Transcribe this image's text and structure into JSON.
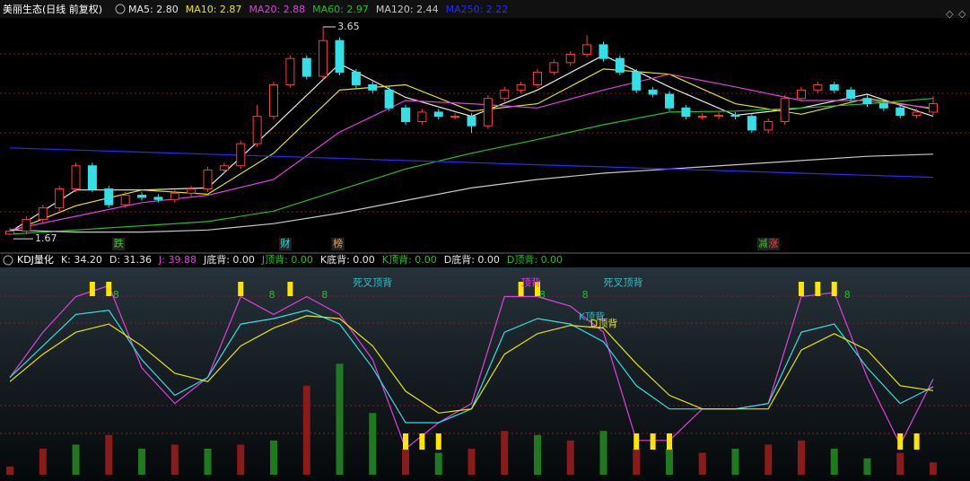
{
  "chart_data": [
    {
      "type": "candlestick",
      "title": "美丽生态(日线 前复权)",
      "up_color": "#ff3b3b",
      "down_color": "#33e0e8",
      "xlim": [
        -0.6,
        56.6
      ],
      "ylim": [
        1.62,
        3.735
      ],
      "open": [
        1.68,
        1.71,
        1.82,
        1.93,
        2.11,
        2.33,
        2.11,
        1.96,
        2.05,
        2.03,
        2.01,
        2.07,
        2.11,
        2.29,
        2.33,
        2.54,
        2.8,
        3.1,
        3.35,
        3.18,
        3.52,
        3.22,
        3.1,
        3.05,
        2.88,
        2.75,
        2.84,
        2.8,
        2.8,
        2.71,
        2.97,
        3.05,
        3.1,
        3.22,
        3.31,
        3.39,
        3.48,
        3.35,
        3.22,
        3.05,
        3.01,
        2.88,
        2.8,
        2.8,
        2.81,
        2.8,
        2.67,
        2.75,
        2.97,
        3.05,
        3.1,
        3.05,
        2.97,
        2.92,
        2.88,
        2.81,
        2.84
      ],
      "high": [
        1.74,
        1.85,
        1.96,
        2.14,
        2.36,
        2.36,
        2.14,
        2.08,
        2.08,
        2.06,
        2.1,
        2.14,
        2.32,
        2.36,
        2.57,
        2.91,
        3.13,
        3.38,
        3.38,
        3.65,
        3.55,
        3.25,
        3.13,
        3.08,
        2.91,
        2.87,
        2.87,
        2.83,
        2.83,
        3.0,
        3.08,
        3.13,
        3.25,
        3.34,
        3.42,
        3.57,
        3.51,
        3.38,
        3.25,
        3.08,
        3.04,
        2.91,
        2.83,
        2.84,
        2.84,
        2.83,
        2.78,
        3.0,
        3.08,
        3.13,
        3.13,
        3.08,
        3.0,
        2.95,
        2.91,
        2.87,
        2.99
      ],
      "low": [
        1.67,
        1.68,
        1.79,
        1.9,
        2.08,
        2.08,
        1.93,
        1.93,
        2.0,
        1.98,
        1.98,
        2.04,
        2.08,
        2.26,
        2.3,
        2.51,
        2.77,
        3.07,
        3.15,
        3.15,
        3.19,
        3.07,
        3.02,
        2.85,
        2.72,
        2.72,
        2.77,
        2.77,
        2.64,
        2.68,
        2.94,
        3.02,
        3.07,
        3.19,
        3.28,
        3.36,
        3.32,
        3.19,
        3.02,
        2.98,
        2.85,
        2.77,
        2.77,
        2.77,
        2.77,
        2.64,
        2.64,
        2.72,
        2.94,
        3.02,
        3.02,
        2.94,
        2.89,
        2.85,
        2.78,
        2.78,
        2.81
      ],
      "close": [
        1.71,
        1.82,
        1.93,
        2.11,
        2.33,
        2.11,
        1.96,
        2.05,
        2.03,
        2.01,
        2.07,
        2.11,
        2.29,
        2.33,
        2.54,
        2.8,
        3.1,
        3.35,
        3.18,
        3.52,
        3.22,
        3.1,
        3.05,
        2.88,
        2.75,
        2.84,
        2.8,
        2.8,
        2.71,
        2.97,
        3.05,
        3.1,
        3.22,
        3.31,
        3.39,
        3.48,
        3.35,
        3.22,
        3.05,
        3.01,
        2.88,
        2.8,
        2.8,
        2.81,
        2.8,
        2.67,
        2.75,
        2.97,
        3.05,
        3.1,
        3.05,
        2.97,
        2.92,
        2.88,
        2.81,
        2.84,
        2.92
      ],
      "series": [
        {
          "name": "MA5: 2.80",
          "color": "#e8e8e8",
          "x": [
            0,
            4,
            8,
            12,
            16,
            20,
            24,
            28,
            32,
            36,
            40,
            44,
            48,
            52,
            56
          ],
          "values": [
            1.7,
            2.1,
            2.1,
            2.12,
            2.7,
            3.3,
            2.98,
            2.8,
            3.05,
            3.38,
            3.08,
            2.81,
            2.88,
            3.01,
            2.8
          ]
        },
        {
          "name": "MA10: 2.87",
          "color": "#e6e600",
          "x": [
            0,
            4,
            8,
            12,
            16,
            20,
            24,
            28,
            32,
            36,
            40,
            44,
            48,
            52,
            56
          ],
          "values": [
            1.7,
            1.95,
            2.1,
            2.06,
            2.45,
            3.05,
            3.1,
            2.85,
            2.92,
            3.25,
            3.2,
            2.92,
            2.82,
            2.97,
            2.87
          ]
        },
        {
          "name": "MA20: 2.88",
          "color": "#e040e0",
          "x": [
            0,
            4,
            8,
            12,
            16,
            20,
            24,
            28,
            32,
            36,
            40,
            44,
            48,
            52,
            56
          ],
          "values": [
            1.72,
            1.85,
            1.98,
            2.05,
            2.2,
            2.65,
            2.95,
            2.92,
            2.88,
            3.05,
            3.2,
            3.08,
            2.95,
            2.95,
            2.88
          ]
        },
        {
          "name": "MA60: 2.97",
          "color": "#22c022",
          "x": [
            0,
            4,
            8,
            12,
            16,
            20,
            24,
            28,
            32,
            36,
            40,
            44,
            48,
            52,
            56
          ],
          "values": [
            1.68,
            1.72,
            1.76,
            1.8,
            1.9,
            2.1,
            2.3,
            2.45,
            2.58,
            2.72,
            2.84,
            2.85,
            2.88,
            2.92,
            2.97
          ]
        },
        {
          "name": "MA120: 2.44",
          "color": "#c8c8c8",
          "x": [
            0,
            4,
            8,
            12,
            16,
            20,
            24,
            28,
            32,
            36,
            40,
            44,
            48,
            52,
            56
          ],
          "values": [
            1.72,
            1.7,
            1.7,
            1.72,
            1.78,
            1.88,
            2.0,
            2.12,
            2.2,
            2.26,
            2.3,
            2.34,
            2.38,
            2.42,
            2.44
          ]
        },
        {
          "name": "MA250: 2.22",
          "color": "#2a2aff",
          "x": [
            0,
            4,
            8,
            12,
            16,
            20,
            24,
            28,
            32,
            36,
            40,
            44,
            48,
            52,
            56
          ],
          "values": [
            2.5,
            2.48,
            2.46,
            2.44,
            2.42,
            2.4,
            2.38,
            2.36,
            2.34,
            2.32,
            2.3,
            2.28,
            2.26,
            2.24,
            2.22
          ]
        }
      ],
      "events": [
        {
          "text": "跌",
          "x": 6.6,
          "color": "#33cc33"
        },
        {
          "text": "财",
          "x": 16.7,
          "color": "#33e0e8"
        },
        {
          "text": "榜",
          "x": 19.9,
          "color": "#ff9a2a"
        },
        {
          "text": "减",
          "x": 45.7,
          "color": "#33cc33"
        },
        {
          "text": "涨",
          "x": 46.3,
          "color": "#ff3b3b"
        }
      ]
    },
    {
      "type": "line",
      "title": "KDJ量化",
      "items": [
        {
          "text": "K: 34.20",
          "color": "#e8e8e8"
        },
        {
          "text": "D: 31.36",
          "color": "#e8e8e8"
        },
        {
          "text": "J: 39.88",
          "color": "#e040e0"
        },
        {
          "text": "J底背: 0.00",
          "color": "#e8e8e8"
        },
        {
          "text": "J顶背: 0.00",
          "color": "#22c022"
        },
        {
          "text": "K底背: 0.00",
          "color": "#e8e8e8"
        },
        {
          "text": "K顶背: 0.00",
          "color": "#22c022"
        },
        {
          "text": "D底背: 0.00",
          "color": "#e8e8e8"
        },
        {
          "text": "D顶背: 0.00",
          "color": "#22c022"
        }
      ],
      "xlim": [
        -0.6,
        56.6
      ],
      "ylim": [
        -30,
        120
      ],
      "series": [
        {
          "name": "J",
          "color": "#e040e0",
          "x": [
            0,
            2,
            4,
            6,
            8,
            10,
            12,
            14,
            16,
            18,
            20,
            22,
            24,
            26,
            28,
            30,
            32,
            34,
            36,
            38,
            40,
            42,
            44,
            46,
            48,
            50,
            52,
            54,
            56
          ],
          "values": [
            41,
            74,
            100,
            108,
            48,
            22,
            41,
            100,
            87,
            100,
            87,
            54,
            -11,
            8,
            22,
            100,
            100,
            93,
            74,
            -5,
            -5,
            18,
            18,
            22,
            100,
            103,
            41,
            -8,
            39.88
          ]
        },
        {
          "name": "K",
          "color": "#33e0e8",
          "x": [
            0,
            2,
            4,
            6,
            8,
            10,
            12,
            14,
            16,
            18,
            20,
            22,
            24,
            26,
            28,
            30,
            32,
            34,
            36,
            38,
            40,
            42,
            44,
            46,
            48,
            50,
            52,
            54,
            56
          ],
          "values": [
            41,
            64,
            87,
            90,
            54,
            28,
            41,
            80,
            84,
            90,
            80,
            48,
            8,
            8,
            18,
            74,
            84,
            80,
            67,
            35,
            18,
            18,
            18,
            22,
            74,
            80,
            48,
            22,
            34.2
          ]
        },
        {
          "name": "D",
          "color": "#e6e600",
          "x": [
            0,
            2,
            4,
            6,
            8,
            10,
            12,
            14,
            16,
            18,
            20,
            22,
            24,
            26,
            28,
            30,
            32,
            34,
            36,
            38,
            40,
            42,
            44,
            46,
            48,
            50,
            52,
            54,
            56
          ],
          "values": [
            38,
            58,
            74,
            80,
            64,
            44,
            38,
            64,
            77,
            86,
            84,
            64,
            31,
            15,
            18,
            58,
            73,
            79,
            77,
            51,
            28,
            18,
            18,
            18,
            61,
            73,
            61,
            35,
            31.36
          ]
        }
      ],
      "bars": {
        "x": [
          0,
          2,
          4,
          6,
          8,
          10,
          12,
          14,
          16,
          18,
          20,
          22,
          24,
          26,
          28,
          30,
          32,
          34,
          36,
          38,
          40,
          42,
          44,
          46,
          48,
          50,
          52,
          54,
          56
        ],
        "values": [
          -24,
          -11,
          -8,
          -1,
          -11,
          -8,
          -11,
          -8,
          -5,
          35,
          51,
          15,
          -11,
          -14,
          -11,
          2,
          -1,
          -5,
          2,
          -11,
          -11,
          -14,
          -11,
          -8,
          -5,
          -11,
          -18,
          -14,
          -21
        ],
        "colors": [
          "#8b1a1a",
          "#8b1a1a",
          "#1f7a1f",
          "#8b1a1a",
          "#1f7a1f",
          "#8b1a1a",
          "#1f7a1f",
          "#8b1a1a",
          "#1f7a1f",
          "#8b1a1a",
          "#1f7a1f",
          "#1f7a1f",
          "#8b1a1a",
          "#1f7a1f",
          "#8b1a1a",
          "#8b1a1a",
          "#1f7a1f",
          "#8b1a1a",
          "#1f7a1f",
          "#8b1a1a",
          "#1f7a1f",
          "#8b1a1a",
          "#1f7a1f",
          "#8b1a1a",
          "#8b1a1a",
          "#1f7a1f",
          "#1f7a1f",
          "#8b1a1a",
          "#8b1a1a"
        ]
      },
      "signal_color": "#ffe600",
      "signals": {
        "top": [
          5,
          6,
          14,
          17,
          31,
          32,
          48,
          49,
          50
        ],
        "bottom": [
          24,
          25,
          26,
          38,
          39,
          40,
          54,
          55
        ]
      },
      "annotations": [
        {
          "text": "8",
          "x": 6.25,
          "y": 101,
          "color": "#22c022"
        },
        {
          "text": "8",
          "x": 15.7,
          "y": 101,
          "color": "#22c022"
        },
        {
          "text": "8",
          "x": 18.9,
          "y": 101,
          "color": "#22c022"
        },
        {
          "text": "8",
          "x": 32.1,
          "y": 101,
          "color": "#22c022"
        },
        {
          "text": "8",
          "x": 34.7,
          "y": 101,
          "color": "#22c022"
        },
        {
          "text": "8",
          "x": 50.6,
          "y": 101,
          "color": "#22c022"
        },
        {
          "text": "死叉顶背",
          "x": 20.8,
          "y": 110,
          "color": "#33c0c8"
        },
        {
          "text": "顶背",
          "x": 31.0,
          "y": 110,
          "color": "#e040e0"
        },
        {
          "text": "死叉顶背",
          "x": 36.0,
          "y": 110,
          "color": "#33c0c8"
        },
        {
          "text": "K顶背",
          "x": 34.5,
          "y": 85,
          "color": "#33c0c8"
        },
        {
          "text": "D顶背",
          "x": 35.2,
          "y": 80,
          "color": "#e6e600"
        }
      ]
    }
  ]
}
